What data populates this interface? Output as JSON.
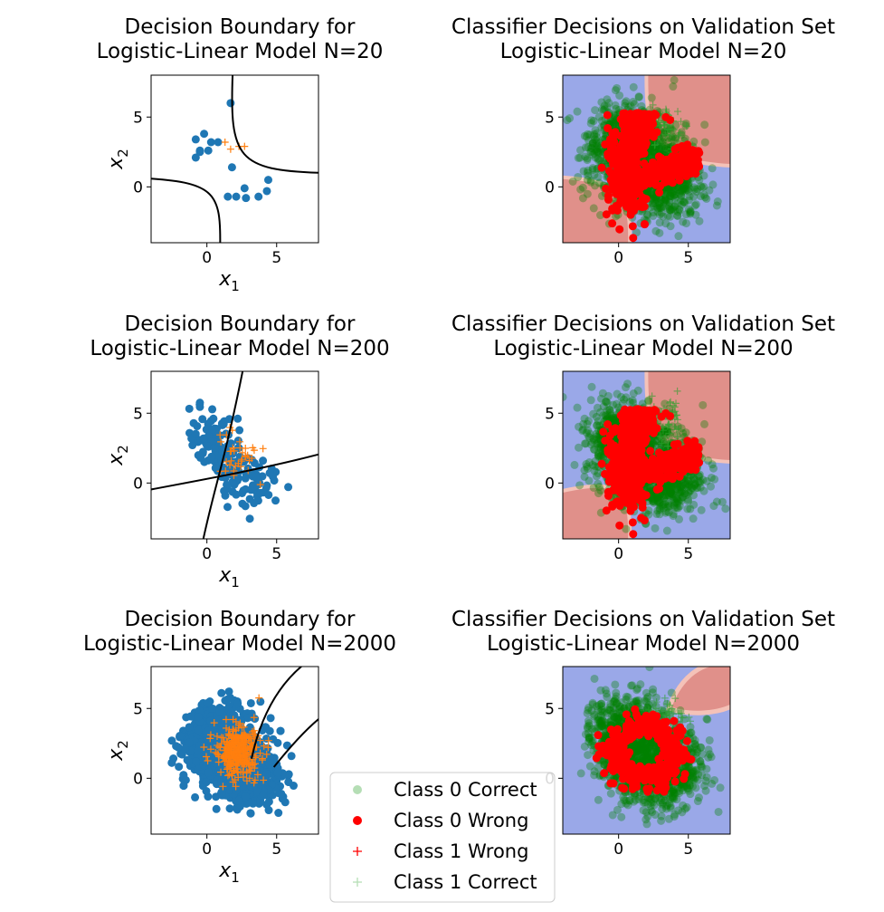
{
  "legend": {
    "entries": [
      {
        "label": "Class 0 Correct",
        "color": "#2ca02c",
        "marker": "circle-faint"
      },
      {
        "label": "Class 0 Wrong",
        "color": "#ff0000",
        "marker": "circle"
      },
      {
        "label": "Class 1 Wrong",
        "color": "#ff0000",
        "marker": "plus"
      },
      {
        "label": "Class 1 Correct",
        "color": "#2ca02c",
        "marker": "plus-faint"
      }
    ]
  },
  "colors": {
    "class0": "#1f77b4",
    "class1": "#ff7f0e",
    "correct": "#008000",
    "wrong": "#ff0000",
    "region_class0": "#9aa8e8",
    "region_class1": "#e0908a",
    "boundary": "#000000"
  },
  "chart_data": [
    {
      "type": "scatter",
      "title": "Decision Boundary for\nLogistic-Linear Model N=20",
      "xlabel": "x1",
      "ylabel": "x2",
      "xlim": [
        -4,
        8
      ],
      "ylim": [
        -4,
        8
      ],
      "xticks": [
        0,
        5
      ],
      "yticks": [
        0,
        5
      ],
      "series": [
        {
          "marker": "circle",
          "color": "#1f77b4",
          "points": [
            [
              -0.8,
              2.1
            ],
            [
              -0.5,
              2.6
            ],
            [
              -0.8,
              3.4
            ],
            [
              -0.2,
              3.8
            ],
            [
              0.3,
              3.2
            ],
            [
              0.8,
              3.2
            ],
            [
              1.5,
              -0.7
            ],
            [
              1.8,
              1.4
            ],
            [
              1.7,
              6.0
            ],
            [
              2.1,
              -0.7
            ],
            [
              2.7,
              -0.1
            ],
            [
              2.8,
              -0.8
            ],
            [
              3.7,
              -0.7
            ],
            [
              4.3,
              -0.3
            ],
            [
              4.4,
              0.5
            ],
            [
              -0.5,
              2.5
            ],
            [
              0.1,
              2.6
            ]
          ]
        },
        {
          "marker": "plus",
          "color": "#ff7f0e",
          "points": [
            [
              1.3,
              3.2
            ],
            [
              1.7,
              2.7
            ],
            [
              2.3,
              2.9
            ],
            [
              2.7,
              2.9
            ]
          ]
        }
      ],
      "boundary": "hyperbolic curve separating classes"
    },
    {
      "type": "scatter",
      "title": "Classifier Decisions on Validation Set\nLogistic-Linear Model N=20",
      "xlim": [
        -4,
        8
      ],
      "ylim": [
        -4,
        8
      ],
      "xticks": [
        0,
        5
      ],
      "yticks": [
        0,
        5
      ],
      "regions": "contour of posterior; red quadrants = Class 1, blue = Class 0"
    },
    {
      "type": "scatter",
      "title": "Decision Boundary for\nLogistic-Linear Model N=200",
      "xlabel": "x1",
      "ylabel": "x2",
      "xlim": [
        -4,
        8
      ],
      "ylim": [
        -4,
        8
      ],
      "xticks": [
        0,
        5
      ],
      "yticks": [
        0,
        5
      ]
    },
    {
      "type": "scatter",
      "title": "Classifier Decisions on Validation Set\nLogistic-Linear Model N=200",
      "xlim": [
        -4,
        8
      ],
      "ylim": [
        -4,
        8
      ],
      "xticks": [
        0,
        5
      ],
      "yticks": [
        0,
        5
      ]
    },
    {
      "type": "scatter",
      "title": "Decision Boundary for\nLogistic-Linear Model N=2000",
      "xlabel": "x1",
      "ylabel": "x2",
      "xlim": [
        -4,
        8
      ],
      "ylim": [
        -4,
        8
      ],
      "xticks": [
        0,
        5
      ],
      "yticks": [
        0,
        5
      ]
    },
    {
      "type": "scatter",
      "title": "Classifier Decisions on Validation Set\nLogistic-Linear Model N=2000",
      "xlim": [
        -4,
        8
      ],
      "ylim": [
        -4,
        8
      ],
      "xticks": [
        0,
        5
      ],
      "yticks": [
        0,
        5
      ]
    }
  ]
}
